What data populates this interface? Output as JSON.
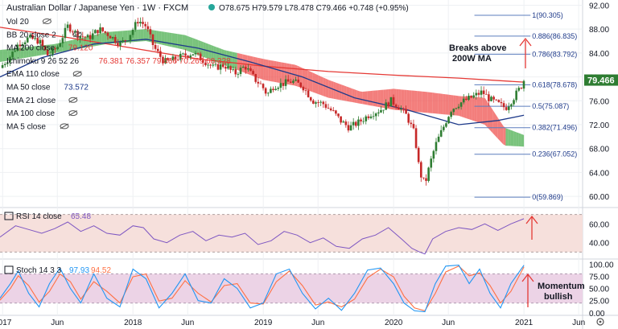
{
  "header": {
    "title": "Australian Dollar / Japanese Yen · 1W · FXCM",
    "ohlc": "O78.675 H79.579 L78.478 C79.466 +0.748 (+0.95%)"
  },
  "price_indicators": [
    {
      "label": "Vol 20",
      "value": "",
      "color": "#131722"
    },
    {
      "label": "BB 20 close 2",
      "value": "",
      "color": "#131722"
    },
    {
      "label": "MA 200 close",
      "value": "79.120",
      "color": "#e53935"
    },
    {
      "label": "Ichimoku 9 26 52 26",
      "value": "76.381  76.357  79.466  70.269  68.328",
      "color": "#e53935"
    },
    {
      "label": "EMA 110 close",
      "value": "",
      "color": "#131722"
    },
    {
      "label": "MA 50 close",
      "value": "73.572",
      "color": "#1e3a8a"
    },
    {
      "label": "EMA 21 close",
      "value": "",
      "color": "#131722"
    },
    {
      "label": "MA 100 close",
      "value": "",
      "color": "#131722"
    },
    {
      "label": "MA 5 close",
      "value": "",
      "color": "#131722"
    }
  ],
  "rsi": {
    "label": "RSI 14 close",
    "value": "65.48"
  },
  "stoch": {
    "label": "Stoch 14 3 3",
    "k": "97.93",
    "d": "94.52"
  },
  "annotations": {
    "breaks_line1": "Breaks above",
    "breaks_line2": "200W MA",
    "momentum_line1": "Momentum",
    "momentum_line2": "bullish"
  },
  "current_price": "79.466",
  "fib_levels": [
    {
      "ratio": "1",
      "price": 90.305,
      "label": "1(90.305)"
    },
    {
      "ratio": "0.886",
      "price": 86.835,
      "label": "0.886(86.835)"
    },
    {
      "ratio": "0.786",
      "price": 83.792,
      "label": "0.786(83.792)"
    },
    {
      "ratio": "0.618",
      "price": 78.678,
      "label": "0.618(78.678)"
    },
    {
      "ratio": "0.5",
      "price": 75.087,
      "label": "0.5(75.087)"
    },
    {
      "ratio": "0.382",
      "price": 71.496,
      "label": "0.382(71.496)"
    },
    {
      "ratio": "0.236",
      "price": 67.052,
      "label": "0.236(67.052)"
    },
    {
      "ratio": "0",
      "price": 59.869,
      "label": "0(59.869)"
    }
  ],
  "chart_data": {
    "type": "candlestick",
    "x_axis": {
      "ticks": [
        {
          "label": "2017",
          "t": 2017.0
        },
        {
          "label": "Jun",
          "t": 2017.42
        },
        {
          "label": "2018",
          "t": 2018.0
        },
        {
          "label": "Jun",
          "t": 2018.42
        },
        {
          "label": "2019",
          "t": 2019.0
        },
        {
          "label": "Jun",
          "t": 2019.42
        },
        {
          "label": "2020",
          "t": 2020.0
        },
        {
          "label": "Jun",
          "t": 2020.42
        },
        {
          "label": "2021",
          "t": 2021.0
        },
        {
          "label": "Jun",
          "t": 2021.42
        }
      ],
      "range": [
        2016.98,
        2021.45
      ]
    },
    "price_axis": {
      "ticks": [
        92.0,
        88.0,
        84.0,
        80.0,
        76.0,
        72.0,
        68.0,
        64.0,
        60.0
      ],
      "range": [
        58.4,
        92.6
      ]
    },
    "rsi_axis": {
      "ticks": [
        60.0,
        40.0
      ],
      "range": [
        26,
        74
      ],
      "bands": [
        30,
        70
      ]
    },
    "stoch_axis": {
      "ticks": [
        100.0,
        75.0,
        50.0,
        25.0,
        0.0
      ],
      "range": [
        -2,
        104
      ],
      "bands": [
        20,
        80
      ]
    },
    "price_path": [
      [
        2016.98,
        81.5
      ],
      [
        2017.06,
        83.5
      ],
      [
        2017.12,
        85.5
      ],
      [
        2017.2,
        86.5
      ],
      [
        2017.28,
        86.0
      ],
      [
        2017.35,
        83.5
      ],
      [
        2017.42,
        85.0
      ],
      [
        2017.5,
        88.5
      ],
      [
        2017.58,
        87.0
      ],
      [
        2017.66,
        86.5
      ],
      [
        2017.74,
        88.0
      ],
      [
        2017.82,
        87.0
      ],
      [
        2017.9,
        85.5
      ],
      [
        2017.96,
        86.5
      ],
      [
        2018.04,
        89.5
      ],
      [
        2018.1,
        88.5
      ],
      [
        2018.16,
        85.0
      ],
      [
        2018.24,
        82.5
      ],
      [
        2018.3,
        82.8
      ],
      [
        2018.38,
        83.5
      ],
      [
        2018.46,
        84.0
      ],
      [
        2018.54,
        82.8
      ],
      [
        2018.62,
        81.5
      ],
      [
        2018.7,
        82.0
      ],
      [
        2018.78,
        80.5
      ],
      [
        2018.86,
        81.8
      ],
      [
        2018.94,
        79.5
      ],
      [
        2018.99,
        78.5
      ],
      [
        2019.03,
        77.0
      ],
      [
        2019.08,
        78.5
      ],
      [
        2019.14,
        78.8
      ],
      [
        2019.22,
        79.3
      ],
      [
        2019.3,
        78.5
      ],
      [
        2019.38,
        76.0
      ],
      [
        2019.46,
        75.5
      ],
      [
        2019.54,
        74.0
      ],
      [
        2019.6,
        72.5
      ],
      [
        2019.66,
        71.5
      ],
      [
        2019.74,
        72.5
      ],
      [
        2019.82,
        73.8
      ],
      [
        2019.9,
        74.5
      ],
      [
        2019.98,
        76.0
      ],
      [
        2020.04,
        75.0
      ],
      [
        2020.1,
        73.5
      ],
      [
        2020.16,
        70.5
      ],
      [
        2020.2,
        64.0
      ],
      [
        2020.24,
        62.0
      ],
      [
        2020.28,
        65.5
      ],
      [
        2020.32,
        68.5
      ],
      [
        2020.38,
        71.5
      ],
      [
        2020.44,
        74.5
      ],
      [
        2020.5,
        75.5
      ],
      [
        2020.56,
        76.2
      ],
      [
        2020.62,
        76.8
      ],
      [
        2020.68,
        77.5
      ],
      [
        2020.74,
        76.2
      ],
      [
        2020.8,
        75.5
      ],
      [
        2020.86,
        74.8
      ],
      [
        2020.92,
        76.5
      ],
      [
        2020.98,
        78.5
      ],
      [
        2021.0,
        79.466
      ]
    ],
    "ma200_path": [
      [
        2016.98,
        88.3
      ],
      [
        2017.5,
        86.6
      ],
      [
        2018.0,
        84.8
      ],
      [
        2018.5,
        83.0
      ],
      [
        2019.0,
        81.8
      ],
      [
        2019.5,
        80.9
      ],
      [
        2020.0,
        80.3
      ],
      [
        2020.5,
        79.8
      ],
      [
        2021.0,
        79.12
      ]
    ],
    "ma50_path": [
      [
        2016.98,
        80.0
      ],
      [
        2017.3,
        83.2
      ],
      [
        2017.7,
        85.5
      ],
      [
        2018.1,
        86.3
      ],
      [
        2018.5,
        84.8
      ],
      [
        2018.9,
        82.5
      ],
      [
        2019.3,
        80.0
      ],
      [
        2019.7,
        76.5
      ],
      [
        2020.1,
        74.5
      ],
      [
        2020.5,
        72.0
      ],
      [
        2020.8,
        72.7
      ],
      [
        2021.0,
        73.572
      ]
    ],
    "cloud_top_path": [
      [
        2016.98,
        84.5
      ],
      [
        2017.4,
        85.5
      ],
      [
        2017.8,
        87.5
      ],
      [
        2018.1,
        88.0
      ],
      [
        2018.4,
        87.0
      ],
      [
        2018.7,
        84.5
      ],
      [
        2019.0,
        83.0
      ],
      [
        2019.25,
        82.0
      ],
      [
        2019.5,
        79.5
      ],
      [
        2019.75,
        77.5
      ],
      [
        2020.0,
        78.0
      ],
      [
        2020.25,
        77.5
      ],
      [
        2020.5,
        76.8
      ],
      [
        2020.7,
        76.5
      ],
      [
        2020.85,
        71.5
      ],
      [
        2021.0,
        70.27
      ]
    ],
    "cloud_bottom_path": [
      [
        2016.98,
        82.5
      ],
      [
        2017.4,
        84.0
      ],
      [
        2017.8,
        85.5
      ],
      [
        2018.1,
        86.0
      ],
      [
        2018.4,
        84.5
      ],
      [
        2018.7,
        82.0
      ],
      [
        2019.0,
        79.5
      ],
      [
        2019.25,
        78.5
      ],
      [
        2019.5,
        76.5
      ],
      [
        2019.75,
        75.5
      ],
      [
        2020.0,
        74.5
      ],
      [
        2020.25,
        74.0
      ],
      [
        2020.5,
        73.5
      ],
      [
        2020.7,
        72.0
      ],
      [
        2020.85,
        68.5
      ],
      [
        2021.0,
        68.33
      ]
    ],
    "rsi_path": [
      [
        2016.98,
        46
      ],
      [
        2017.1,
        58
      ],
      [
        2017.2,
        54
      ],
      [
        2017.3,
        50
      ],
      [
        2017.4,
        55
      ],
      [
        2017.5,
        62
      ],
      [
        2017.6,
        52
      ],
      [
        2017.7,
        58
      ],
      [
        2017.8,
        50
      ],
      [
        2017.9,
        48
      ],
      [
        2018.0,
        58
      ],
      [
        2018.08,
        56
      ],
      [
        2018.16,
        44
      ],
      [
        2018.26,
        40
      ],
      [
        2018.36,
        48
      ],
      [
        2018.46,
        52
      ],
      [
        2018.56,
        42
      ],
      [
        2018.66,
        48
      ],
      [
        2018.76,
        46
      ],
      [
        2018.86,
        50
      ],
      [
        2018.96,
        38
      ],
      [
        2019.06,
        42
      ],
      [
        2019.16,
        52
      ],
      [
        2019.26,
        48
      ],
      [
        2019.36,
        40
      ],
      [
        2019.46,
        45
      ],
      [
        2019.56,
        36
      ],
      [
        2019.66,
        34
      ],
      [
        2019.76,
        44
      ],
      [
        2019.86,
        48
      ],
      [
        2019.96,
        56
      ],
      [
        2020.06,
        44
      ],
      [
        2020.14,
        34
      ],
      [
        2020.2,
        30
      ],
      [
        2020.24,
        28
      ],
      [
        2020.3,
        44
      ],
      [
        2020.4,
        52
      ],
      [
        2020.5,
        56
      ],
      [
        2020.6,
        54
      ],
      [
        2020.7,
        60
      ],
      [
        2020.8,
        53
      ],
      [
        2020.9,
        60
      ],
      [
        2021.0,
        65.48
      ]
    ],
    "stoch_k_path": [
      [
        2016.98,
        30
      ],
      [
        2017.06,
        60
      ],
      [
        2017.12,
        86
      ],
      [
        2017.2,
        40
      ],
      [
        2017.28,
        12
      ],
      [
        2017.36,
        60
      ],
      [
        2017.44,
        92
      ],
      [
        2017.52,
        50
      ],
      [
        2017.6,
        20
      ],
      [
        2017.7,
        80
      ],
      [
        2017.8,
        30
      ],
      [
        2017.9,
        12
      ],
      [
        2018.0,
        90
      ],
      [
        2018.1,
        70
      ],
      [
        2018.2,
        10
      ],
      [
        2018.3,
        40
      ],
      [
        2018.4,
        80
      ],
      [
        2018.5,
        25
      ],
      [
        2018.6,
        20
      ],
      [
        2018.7,
        70
      ],
      [
        2018.8,
        50
      ],
      [
        2018.9,
        10
      ],
      [
        2019.0,
        20
      ],
      [
        2019.1,
        80
      ],
      [
        2019.2,
        90
      ],
      [
        2019.3,
        40
      ],
      [
        2019.4,
        8
      ],
      [
        2019.5,
        30
      ],
      [
        2019.6,
        5
      ],
      [
        2019.7,
        40
      ],
      [
        2019.8,
        88
      ],
      [
        2019.9,
        92
      ],
      [
        2020.0,
        60
      ],
      [
        2020.08,
        20
      ],
      [
        2020.16,
        4
      ],
      [
        2020.24,
        2
      ],
      [
        2020.32,
        60
      ],
      [
        2020.4,
        96
      ],
      [
        2020.5,
        98
      ],
      [
        2020.58,
        60
      ],
      [
        2020.66,
        90
      ],
      [
        2020.74,
        40
      ],
      [
        2020.82,
        10
      ],
      [
        2020.9,
        60
      ],
      [
        2021.0,
        97.93
      ]
    ],
    "stoch_d_path": [
      [
        2016.98,
        26
      ],
      [
        2017.06,
        50
      ],
      [
        2017.12,
        76
      ],
      [
        2017.2,
        56
      ],
      [
        2017.28,
        22
      ],
      [
        2017.36,
        44
      ],
      [
        2017.44,
        80
      ],
      [
        2017.52,
        64
      ],
      [
        2017.6,
        28
      ],
      [
        2017.7,
        64
      ],
      [
        2017.8,
        44
      ],
      [
        2017.9,
        20
      ],
      [
        2018.0,
        74
      ],
      [
        2018.1,
        80
      ],
      [
        2018.2,
        24
      ],
      [
        2018.3,
        30
      ],
      [
        2018.4,
        66
      ],
      [
        2018.5,
        40
      ],
      [
        2018.6,
        22
      ],
      [
        2018.7,
        56
      ],
      [
        2018.8,
        60
      ],
      [
        2018.9,
        20
      ],
      [
        2019.0,
        18
      ],
      [
        2019.1,
        64
      ],
      [
        2019.2,
        86
      ],
      [
        2019.3,
        56
      ],
      [
        2019.4,
        16
      ],
      [
        2019.5,
        22
      ],
      [
        2019.6,
        12
      ],
      [
        2019.7,
        28
      ],
      [
        2019.8,
        72
      ],
      [
        2019.9,
        90
      ],
      [
        2020.0,
        74
      ],
      [
        2020.08,
        34
      ],
      [
        2020.16,
        10
      ],
      [
        2020.24,
        4
      ],
      [
        2020.32,
        40
      ],
      [
        2020.4,
        84
      ],
      [
        2020.5,
        96
      ],
      [
        2020.58,
        76
      ],
      [
        2020.66,
        82
      ],
      [
        2020.74,
        56
      ],
      [
        2020.82,
        20
      ],
      [
        2020.9,
        44
      ],
      [
        2021.0,
        94.52
      ]
    ]
  },
  "colors": {
    "bull": "#2e7d32",
    "bear": "#c62828",
    "ma200": "#e53935",
    "ma50": "#1e3a8a",
    "cloud_green": "#4caf50",
    "cloud_red": "#ef5350",
    "rsi": "#7e57c2",
    "stoch_k": "#2196f3",
    "stoch_d": "#ff7043",
    "fib": "#5b7dbd",
    "arrow": "#e53935",
    "price_label_bg": "#2e7d32"
  }
}
